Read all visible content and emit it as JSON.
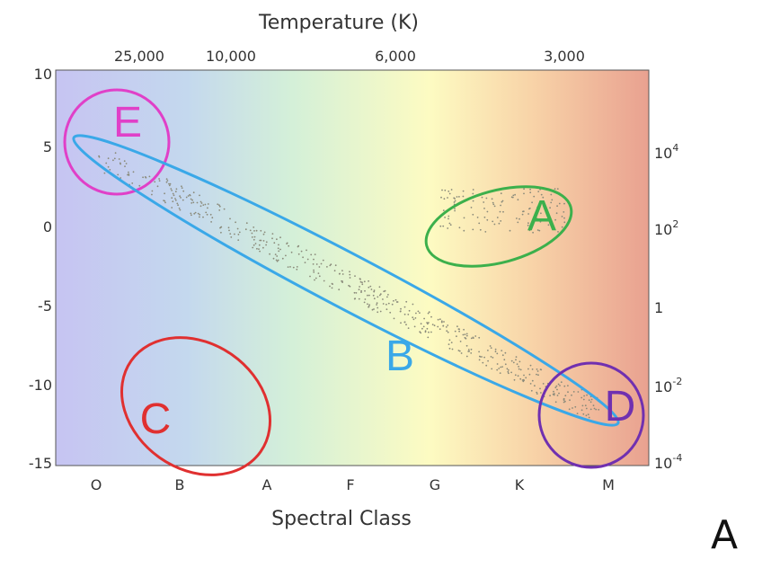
{
  "top_axis": {
    "title": "Temperature (K)",
    "ticks": [
      "25,000",
      "10,000",
      "6,000",
      "3,000"
    ]
  },
  "left_axis": {
    "ticks": [
      "10",
      "5",
      "0",
      "-5",
      "-10",
      "-15"
    ]
  },
  "right_axis": {
    "ticks": [
      {
        "base": "10",
        "exp": "4"
      },
      {
        "base": "10",
        "exp": "2"
      },
      {
        "base": "1"
      },
      {
        "base": "10",
        "exp": "-2"
      },
      {
        "base": "10",
        "exp": "-4"
      }
    ]
  },
  "bottom_axis": {
    "title": "Spectral Class",
    "ticks": [
      "O",
      "B",
      "A",
      "F",
      "G",
      "K",
      "M"
    ]
  },
  "regions": [
    {
      "label": "E"
    },
    {
      "label": "A"
    },
    {
      "label": "B"
    },
    {
      "label": "C"
    },
    {
      "label": "D"
    }
  ],
  "panel_label": "A"
}
